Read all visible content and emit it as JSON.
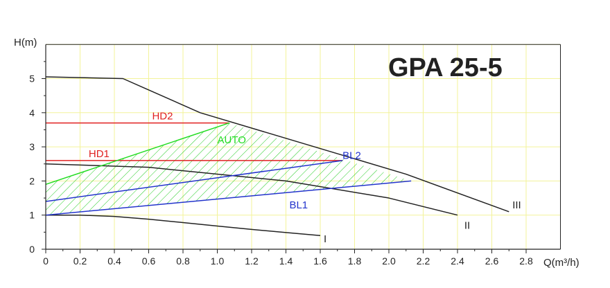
{
  "chart_data": {
    "type": "line",
    "title": "GPA 25-5",
    "xlabel": "Q(m³/h)",
    "ylabel": "H(m)",
    "xlim": [
      0,
      3.0
    ],
    "ylim": [
      0,
      6.0
    ],
    "xticks": [
      "0",
      "0.2",
      "0.4",
      "0.6",
      "0.8",
      "1.0",
      "1.2",
      "1.4",
      "1.6",
      "1.8",
      "2.0",
      "2.2",
      "2.4",
      "2.6",
      "2.8"
    ],
    "yticks": [
      "0",
      "1",
      "2",
      "3",
      "4",
      "5"
    ],
    "grid": true,
    "series": [
      {
        "name": "I",
        "color": "#222222",
        "x": [
          0,
          0.2,
          0.4,
          0.6,
          0.8,
          1.0,
          1.2,
          1.4,
          1.6
        ],
        "y": [
          1.0,
          1.0,
          0.96,
          0.88,
          0.78,
          0.68,
          0.58,
          0.49,
          0.4
        ]
      },
      {
        "name": "II",
        "color": "#222222",
        "x": [
          0,
          0.6,
          1.4,
          2.0,
          2.4
        ],
        "y": [
          2.5,
          2.4,
          2.0,
          1.5,
          1.0
        ]
      },
      {
        "name": "III",
        "color": "#222222",
        "x": [
          0,
          0.45,
          0.9,
          1.6,
          2.1,
          2.7
        ],
        "y": [
          5.05,
          5.0,
          4.0,
          2.95,
          2.2,
          1.1
        ]
      },
      {
        "name": "HD2",
        "color": "#e02020",
        "x": [
          0,
          1.07
        ],
        "y": [
          3.7,
          3.7
        ]
      },
      {
        "name": "HD1",
        "color": "#e02020",
        "x": [
          0,
          1.73
        ],
        "y": [
          2.6,
          2.6
        ]
      },
      {
        "name": "AUTO",
        "color": "#22dd22",
        "x": [
          0,
          1.07
        ],
        "y": [
          1.9,
          3.7
        ]
      },
      {
        "name": "BL2",
        "color": "#2233cc",
        "x": [
          0,
          1.73
        ],
        "y": [
          1.4,
          2.6
        ]
      },
      {
        "name": "BL1",
        "color": "#2233cc",
        "x": [
          0,
          2.13
        ],
        "y": [
          1.0,
          2.0
        ]
      }
    ],
    "auto_region": {
      "x": [
        0,
        1.07,
        2.13,
        0
      ],
      "y": [
        1.9,
        3.7,
        2.0,
        1.0
      ]
    },
    "labels": [
      {
        "text": "I",
        "color": "#222222",
        "x": 1.62,
        "y": 0.2
      },
      {
        "text": "II",
        "color": "#222222",
        "x": 2.44,
        "y": 0.6
      },
      {
        "text": "III",
        "color": "#222222",
        "x": 2.72,
        "y": 1.2
      },
      {
        "text": "HD2",
        "color": "#e02020",
        "x": 0.62,
        "y": 3.8
      },
      {
        "text": "HD1",
        "color": "#e02020",
        "x": 0.25,
        "y": 2.7
      },
      {
        "text": "AUTO",
        "color": "#22dd22",
        "x": 1.0,
        "y": 3.1
      },
      {
        "text": "BL2",
        "color": "#2233cc",
        "x": 1.73,
        "y": 2.65
      },
      {
        "text": "BL1",
        "color": "#2233cc",
        "x": 1.42,
        "y": 1.2
      }
    ]
  }
}
